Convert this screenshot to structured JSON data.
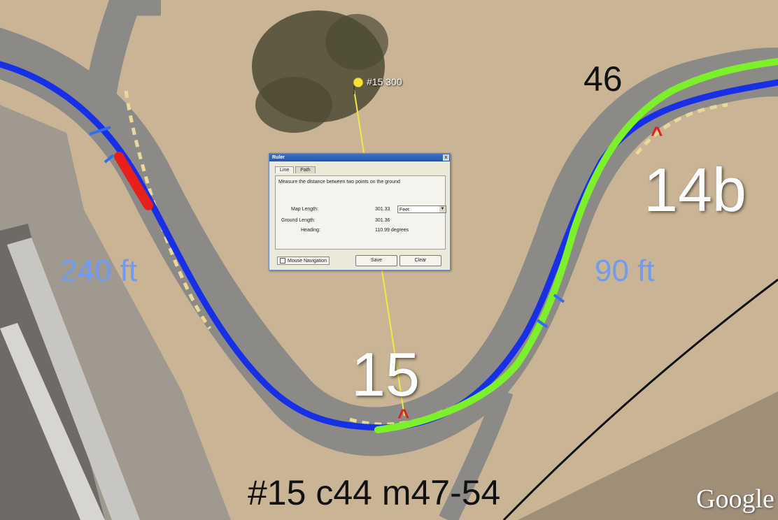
{
  "map": {
    "turn_labels": [
      "15",
      "14b"
    ],
    "distance_labels": [
      "240 ft",
      "90 ft"
    ],
    "car_number": "46",
    "caption": "#15 c44 m47-54",
    "pin_label": "#15 300",
    "watermark": "Google",
    "apex_marker": "^",
    "colors": {
      "sand": "#c9b596",
      "asphalt": "#8c8a86",
      "blue_line": "#1730e6",
      "green_line": "#7cf02a",
      "red_segment": "#e8201c",
      "ruler_line": "#f2e940",
      "distance_text": "#6f9bf2"
    }
  },
  "ruler_dialog": {
    "title": "Ruler",
    "close": "x",
    "tabs": [
      "Line",
      "Path"
    ],
    "description": "Measure the distance between two points on the ground",
    "map_length_label": "Map Length:",
    "map_length_value": "301.33",
    "unit": "Feet",
    "ground_length_label": "Ground Length:",
    "ground_length_value": "301.36",
    "heading_label": "Heading:",
    "heading_value": "110.99 degrees",
    "mouse_navigation": "Mouse Navigation",
    "save": "Save",
    "clear": "Clear"
  }
}
